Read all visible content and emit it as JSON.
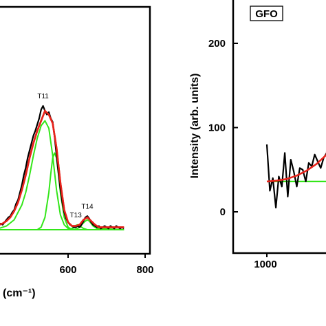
{
  "chart_data": [
    {
      "type": "line",
      "panel": "left",
      "xlabel": "(cm⁻¹)",
      "ylabel": "",
      "xlim": [
        400,
        800
      ],
      "x_ticks": [
        "600",
        "800"
      ],
      "series": [
        {
          "name": "",
          "color": "#000000",
          "role": "measured",
          "x": [
            400,
            405,
            410,
            415,
            420,
            425,
            430,
            435,
            440,
            445,
            450,
            455,
            460,
            465,
            470,
            475,
            480,
            485,
            490,
            495,
            500,
            505,
            510,
            515,
            520,
            525,
            530,
            535,
            540,
            545,
            550,
            555,
            560,
            565,
            570,
            575,
            580,
            585,
            590,
            595,
            600,
            605,
            610,
            615,
            620,
            625,
            630,
            635,
            640,
            645,
            650,
            655,
            660,
            665,
            670,
            675,
            680,
            685,
            690,
            695,
            700,
            705,
            710,
            715,
            720,
            725,
            730,
            735,
            740,
            745
          ],
          "y": [
            0.02,
            0.03,
            0.01,
            0.04,
            0.03,
            0.05,
            0.04,
            0.06,
            0.08,
            0.1,
            0.11,
            0.14,
            0.16,
            0.21,
            0.24,
            0.3,
            0.36,
            0.44,
            0.5,
            0.58,
            0.64,
            0.7,
            0.76,
            0.8,
            0.85,
            0.9,
            0.97,
            1.0,
            0.96,
            0.93,
            0.95,
            0.9,
            0.87,
            0.75,
            0.6,
            0.46,
            0.33,
            0.22,
            0.14,
            0.09,
            0.06,
            0.04,
            0.03,
            0.02,
            0.02,
            0.03,
            0.02,
            0.04,
            0.07,
            0.1,
            0.11,
            0.09,
            0.06,
            0.04,
            0.03,
            0.02,
            0.03,
            0.01,
            0.02,
            0.03,
            0.02,
            0.01,
            0.03,
            0.02,
            0.01,
            0.03,
            0.02,
            0.01,
            0.02,
            0.01
          ]
        },
        {
          "name": "",
          "color": "#e8231b",
          "role": "fit",
          "x": [
            400,
            410,
            420,
            430,
            440,
            450,
            460,
            470,
            480,
            490,
            500,
            510,
            520,
            530,
            540,
            550,
            560,
            570,
            580,
            590,
            600,
            610,
            620,
            630,
            640,
            650,
            660,
            670,
            680,
            690,
            700,
            720,
            745
          ],
          "y": [
            0.02,
            0.03,
            0.04,
            0.05,
            0.07,
            0.1,
            0.15,
            0.22,
            0.32,
            0.44,
            0.58,
            0.7,
            0.8,
            0.88,
            0.96,
            0.93,
            0.86,
            0.66,
            0.38,
            0.16,
            0.06,
            0.03,
            0.03,
            0.04,
            0.08,
            0.1,
            0.07,
            0.04,
            0.02,
            0.02,
            0.02,
            0.02,
            0.02
          ]
        },
        {
          "name": "",
          "color": "#33e619",
          "role": "component",
          "x": [
            400,
            420,
            440,
            460,
            480,
            490,
            500,
            510,
            520,
            530,
            540,
            550,
            560,
            570,
            580,
            590,
            600,
            620,
            745
          ],
          "y": [
            0.0,
            0.01,
            0.03,
            0.08,
            0.2,
            0.3,
            0.44,
            0.6,
            0.74,
            0.84,
            0.88,
            0.82,
            0.6,
            0.32,
            0.12,
            0.04,
            0.01,
            0.0,
            0.0
          ]
        },
        {
          "name": "",
          "color": "#33e619",
          "role": "component",
          "x": [
            400,
            520,
            530,
            540,
            550,
            555,
            560,
            565,
            570,
            575,
            580,
            590,
            600,
            610,
            620,
            745
          ],
          "y": [
            0.0,
            0.0,
            0.02,
            0.1,
            0.3,
            0.45,
            0.58,
            0.62,
            0.58,
            0.45,
            0.3,
            0.1,
            0.02,
            0.0,
            0.0,
            0.0
          ]
        },
        {
          "name": "",
          "color": "#33e619",
          "role": "component",
          "x": [
            400,
            600,
            610,
            615,
            620,
            625,
            630,
            635,
            640,
            650,
            745
          ],
          "y": [
            0.0,
            0.0,
            0.01,
            0.02,
            0.035,
            0.04,
            0.035,
            0.02,
            0.01,
            0.0,
            0.0
          ]
        },
        {
          "name": "",
          "color": "#33e619",
          "role": "component",
          "x": [
            400,
            615,
            625,
            635,
            645,
            650,
            655,
            665,
            675,
            745
          ],
          "y": [
            0.0,
            0.0,
            0.01,
            0.04,
            0.07,
            0.08,
            0.07,
            0.03,
            0.01,
            0.0
          ]
        }
      ],
      "annotations": [
        {
          "text": "T11",
          "x": 535,
          "y": 1.06
        },
        {
          "text": "T13",
          "x": 620,
          "y": 0.1
        },
        {
          "text": "T14",
          "x": 650,
          "y": 0.17
        }
      ]
    },
    {
      "type": "line",
      "panel": "right",
      "title": "GFO",
      "xlabel": "",
      "ylabel": "Intensity (arb. units)",
      "xlim": [
        950,
        1250
      ],
      "ylim": [
        -30,
        250
      ],
      "x_ticks": [
        "1000"
      ],
      "y_ticks": [
        "0",
        "100",
        "200"
      ],
      "series": [
        {
          "name": "",
          "color": "#000000",
          "role": "measured",
          "x": [
            1000,
            1003,
            1006,
            1009,
            1012,
            1015,
            1018,
            1021,
            1024,
            1027,
            1030,
            1033,
            1036,
            1039,
            1042,
            1045,
            1048,
            1051,
            1054,
            1057,
            1060,
            1063,
            1066,
            1069,
            1072,
            1075,
            1078,
            1081,
            1084,
            1087,
            1090
          ],
          "y": [
            80,
            25,
            40,
            5,
            42,
            30,
            70,
            18,
            62,
            48,
            30,
            52,
            50,
            36,
            58,
            54,
            68,
            60,
            52,
            64,
            70,
            75,
            80,
            78,
            84,
            90,
            95,
            102,
            108,
            115,
            120
          ]
        },
        {
          "name": "",
          "color": "#e8231b",
          "role": "fit",
          "x": [
            1000,
            1010,
            1020,
            1030,
            1040,
            1050,
            1060,
            1070,
            1080,
            1090
          ],
          "y": [
            36,
            37,
            39,
            43,
            49,
            57,
            68,
            82,
            99,
            118
          ]
        },
        {
          "name": "",
          "color": "#33e619",
          "role": "baseline",
          "x": [
            1000,
            1090
          ],
          "y": [
            36,
            36
          ]
        }
      ]
    }
  ]
}
